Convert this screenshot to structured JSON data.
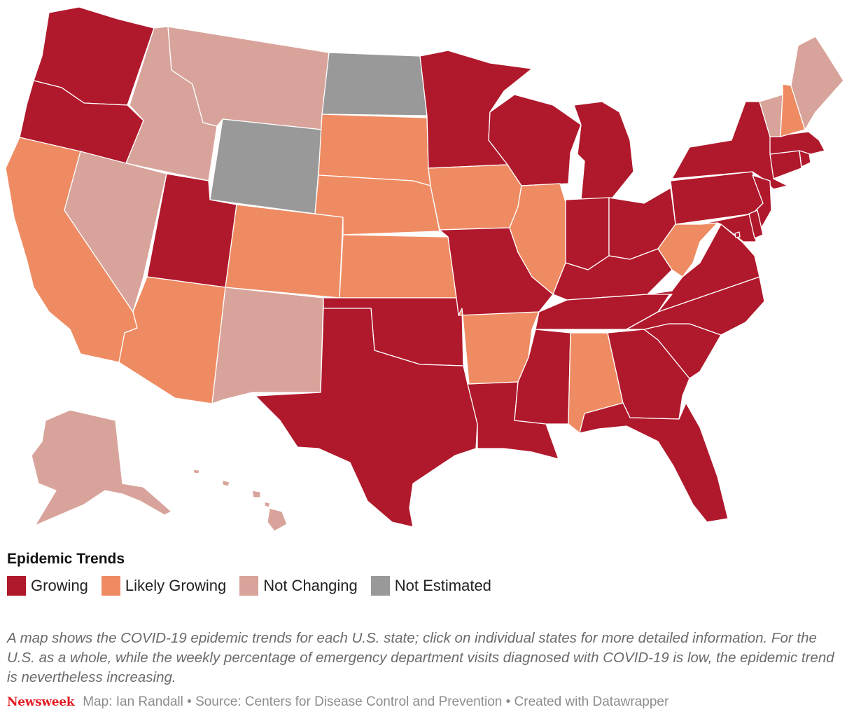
{
  "legend": {
    "title": "Epidemic Trends",
    "categories": [
      {
        "key": "growing",
        "label": "Growing",
        "color": "#b0182b"
      },
      {
        "key": "likely",
        "label": "Likely Growing",
        "color": "#ef8b62"
      },
      {
        "key": "none",
        "label": "Not Changing",
        "color": "#d8a39a"
      },
      {
        "key": "na",
        "label": "Not Estimated",
        "color": "#999999"
      }
    ]
  },
  "states": {
    "AL": "likely",
    "AK": "none",
    "AZ": "likely",
    "AR": "likely",
    "CA": "likely",
    "CO": "likely",
    "CT": "growing",
    "DE": "growing",
    "DC": "growing",
    "FL": "growing",
    "GA": "growing",
    "HI": "none",
    "ID": "none",
    "IL": "likely",
    "IN": "growing",
    "IA": "likely",
    "KS": "likely",
    "KY": "growing",
    "LA": "growing",
    "ME": "none",
    "MD": "growing",
    "MA": "growing",
    "MI": "growing",
    "MN": "growing",
    "MS": "growing",
    "MO": "growing",
    "MT": "none",
    "NE": "likely",
    "NV": "none",
    "NH": "likely",
    "NJ": "growing",
    "NM": "none",
    "NY": "growing",
    "NC": "growing",
    "ND": "na",
    "OH": "growing",
    "OK": "growing",
    "OR": "growing",
    "PA": "growing",
    "RI": "growing",
    "SC": "growing",
    "SD": "likely",
    "TN": "growing",
    "TX": "growing",
    "UT": "growing",
    "VT": "none",
    "VA": "growing",
    "WA": "growing",
    "WV": "likely",
    "WI": "growing",
    "WY": "na"
  },
  "caption": "A map shows the COVID-19 epidemic trends for each U.S. state; click on individual states for more detailed information. For the U.S. as a whole, while the weekly percentage of emergency department visits diagnosed with COVID-19 is low, the epidemic trend is nevertheless increasing.",
  "footer": {
    "brand": "Newsweek",
    "credits": "Map: Ian Randall • Source: Centers for Disease Control and Prevention • Created with Datawrapper"
  }
}
